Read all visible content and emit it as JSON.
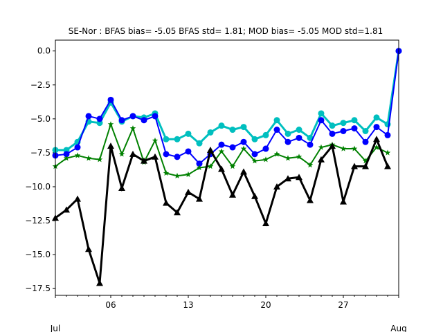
{
  "chart_data": {
    "type": "line",
    "title": "SE-Nor   : BFAS bias= -5.05 BFAS std= 1.81; MOD bias= -5.05 MOD std=1.81",
    "xlabel": "",
    "ylabel": "",
    "x": [
      1,
      2,
      3,
      4,
      5,
      6,
      7,
      8,
      9,
      10,
      11,
      12,
      13,
      14,
      15,
      16,
      17,
      18,
      19,
      20,
      21,
      22,
      23,
      24,
      25,
      26,
      27,
      28,
      29,
      30,
      31,
      32
    ],
    "xlim": [
      1,
      32
    ],
    "ylim": [
      -18.0,
      0.8
    ],
    "xticks": [
      {
        "x": 1,
        "label": "Jul",
        "minor": false
      },
      {
        "x": 6,
        "label": "06",
        "minor": true
      },
      {
        "x": 13,
        "label": "13",
        "minor": true
      },
      {
        "x": 20,
        "label": "20",
        "minor": true
      },
      {
        "x": 27,
        "label": "27",
        "minor": true
      },
      {
        "x": 32,
        "label": "Aug",
        "minor": false
      }
    ],
    "yticks": [
      0.0,
      -2.5,
      -5.0,
      -7.5,
      -10.0,
      -12.5,
      -15.0,
      -17.5
    ],
    "ytick_labels": [
      "0.0",
      "−2.5",
      "−5.0",
      "−7.5",
      "−10.0",
      "−12.5",
      "−15.0",
      "−17.5"
    ],
    "grid": false,
    "series": [
      {
        "color": "#00bfbf",
        "marker": "circle",
        "linewidth": 3,
        "values": [
          -7.3,
          -7.3,
          -6.7,
          -5.2,
          -5.3,
          -3.8,
          -5.2,
          -4.8,
          -4.9,
          -4.6,
          -6.5,
          -6.5,
          -6.1,
          -6.8,
          -6.0,
          -5.5,
          -5.8,
          -5.6,
          -6.5,
          -6.2,
          -5.1,
          -6.1,
          -5.8,
          -6.4,
          -4.6,
          -5.5,
          -5.3,
          -5.1,
          -5.9,
          -4.9,
          -5.4,
          0.0
        ]
      },
      {
        "color": "#0000ff",
        "marker": "circle",
        "linewidth": 2,
        "values": [
          -7.7,
          -7.6,
          -7.1,
          -4.8,
          -5.0,
          -3.6,
          -5.1,
          -4.8,
          -5.1,
          -4.8,
          -7.6,
          -7.8,
          -7.4,
          -8.3,
          -7.6,
          -6.9,
          -7.1,
          -6.7,
          -7.6,
          -7.2,
          -5.8,
          -6.7,
          -6.4,
          -6.9,
          -5.1,
          -6.1,
          -5.9,
          -5.7,
          -6.7,
          -5.6,
          -6.2,
          0.0
        ]
      },
      {
        "color": "#008000",
        "marker": "star",
        "linewidth": 2,
        "values": [
          -8.5,
          -7.9,
          -7.7,
          -7.9,
          -8.0,
          -5.4,
          -7.6,
          -5.7,
          -8.2,
          -6.6,
          -9.0,
          -9.2,
          -9.1,
          -8.6,
          -8.5,
          -7.4,
          -8.5,
          -7.2,
          -8.1,
          -8.0,
          -7.6,
          -7.9,
          -7.8,
          -8.4,
          -7.1,
          -6.9,
          -7.2,
          -7.2,
          -8.1,
          -7.1,
          -7.5,
          null
        ]
      },
      {
        "color": "#000000",
        "marker": "triangle",
        "linewidth": 3,
        "values": [
          -12.3,
          -11.7,
          -10.9,
          -14.6,
          -17.1,
          -7.0,
          -10.1,
          -7.6,
          -8.1,
          -7.8,
          -11.2,
          -11.9,
          -10.4,
          -10.9,
          -7.3,
          -8.7,
          -10.6,
          -8.9,
          -10.7,
          -12.7,
          -10.0,
          -9.4,
          -9.3,
          -11.0,
          -8.0,
          -7.0,
          -11.1,
          -8.5,
          -8.5,
          -6.5,
          -8.5,
          null
        ]
      }
    ]
  }
}
